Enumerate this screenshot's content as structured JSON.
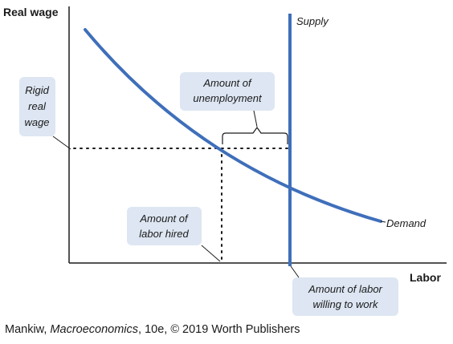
{
  "axes": {
    "y_label": "Real wage",
    "x_label": "Labor"
  },
  "curves": {
    "supply_label": "Supply",
    "demand_label": "Demand"
  },
  "callouts": {
    "rigid_wage": [
      "Rigid",
      "real",
      "wage"
    ],
    "unemployment": [
      "Amount of",
      "unemployment"
    ],
    "labor_hired": [
      "Amount of",
      "labor hired"
    ],
    "labor_willing": [
      "Amount of labor",
      "willing to work"
    ]
  },
  "caption": {
    "prefix": "Mankiw, ",
    "title": "Macroeconomics",
    "suffix": ", 10e, © 2019 Worth Publishers"
  },
  "colors": {
    "curve": "#3f6fba",
    "callout_fill": "#dde6f2",
    "axis": "#1a1a1a"
  }
}
